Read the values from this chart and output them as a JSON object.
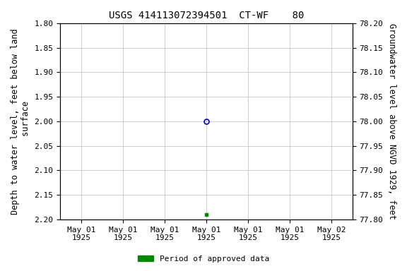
{
  "title": "USGS 414113072394501  CT-WF    80",
  "ylabel_left": "Depth to water level, feet below land\n surface",
  "ylabel_right": "Groundwater level above NGVD 1929, feet",
  "ylim_left": [
    2.2,
    1.8
  ],
  "ylim_right": [
    77.8,
    78.2
  ],
  "yticks_left": [
    1.8,
    1.85,
    1.9,
    1.95,
    2.0,
    2.05,
    2.1,
    2.15,
    2.2
  ],
  "yticks_right": [
    78.2,
    78.15,
    78.1,
    78.05,
    78.0,
    77.95,
    77.9,
    77.85,
    77.8
  ],
  "data_point_open_x": 3,
  "data_point_open_y": 2.0,
  "data_point_filled_x": 3,
  "data_point_filled_y": 2.19,
  "xlim": [
    -0.5,
    6.5
  ],
  "xticks": [
    0,
    1,
    2,
    3,
    4,
    5,
    6
  ],
  "xtick_labels": [
    "May 01\n1925",
    "May 01\n1925",
    "May 01\n1925",
    "May 01\n1925",
    "May 01\n1925",
    "May 01\n1925",
    "May 02\n1925"
  ],
  "legend_label": "Period of approved data",
  "legend_color": "#008800",
  "bg_color": "#ffffff",
  "grid_color": "#bbbbbb",
  "open_marker_color": "#0000cc",
  "filled_marker_color": "#008800",
  "title_fontsize": 10,
  "label_fontsize": 8.5,
  "tick_fontsize": 8
}
